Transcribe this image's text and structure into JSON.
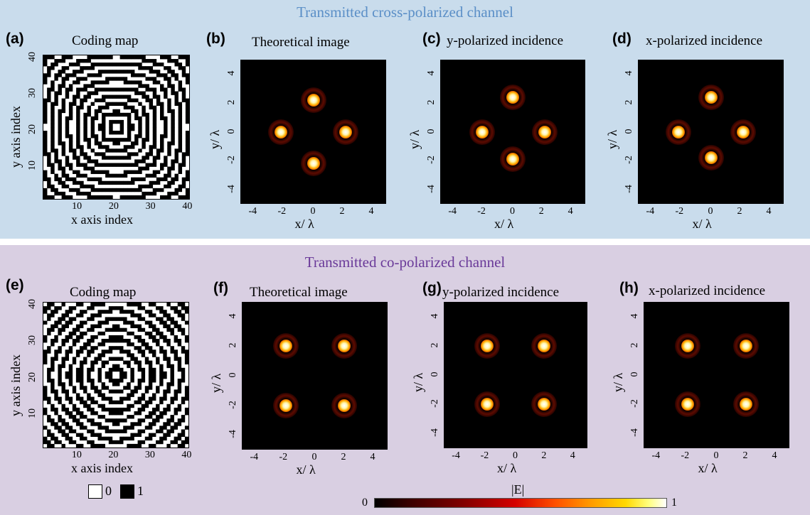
{
  "sections": {
    "top_title": "Transmitted cross-polarized channel",
    "bottom_title": "Transmitted co-polarized channel"
  },
  "panels": {
    "a": {
      "label": "(a)",
      "title": "Coding map",
      "xlabel": "x axis index",
      "ylabel": "y axis index",
      "xticks": [
        "10",
        "20",
        "30",
        "40"
      ],
      "yticks": [
        "10",
        "20",
        "30",
        "40"
      ]
    },
    "b": {
      "label": "(b)",
      "title": "Theoretical image",
      "xlabel": "x/ λ",
      "ylabel": "y/ λ",
      "xticks": [
        "-4",
        "-2",
        "0",
        "2",
        "4"
      ],
      "yticks": [
        "-4",
        "-2",
        "0",
        "2",
        "4"
      ]
    },
    "c": {
      "label": "(c)",
      "title": "y-polarized incidence",
      "xlabel": "x/ λ",
      "ylabel": "y/ λ",
      "xticks": [
        "-4",
        "-2",
        "0",
        "2",
        "4"
      ],
      "yticks": [
        "-4",
        "-2",
        "0",
        "2",
        "4"
      ]
    },
    "d": {
      "label": "(d)",
      "title": "x-polarized incidence",
      "xlabel": "x/ λ",
      "ylabel": "y/ λ",
      "xticks": [
        "-4",
        "-2",
        "0",
        "2",
        "4"
      ],
      "yticks": [
        "-4",
        "-2",
        "0",
        "2",
        "4"
      ]
    },
    "e": {
      "label": "(e)",
      "title": "Coding map",
      "xlabel": "x axis index",
      "ylabel": "y axis index",
      "xticks": [
        "10",
        "20",
        "30",
        "40"
      ],
      "yticks": [
        "10",
        "20",
        "30",
        "40"
      ]
    },
    "f": {
      "label": "(f)",
      "title": "Theoretical image",
      "xlabel": "x/ λ",
      "ylabel": "y/ λ",
      "xticks": [
        "-4",
        "-2",
        "0",
        "2",
        "4"
      ],
      "yticks": [
        "-4",
        "-2",
        "0",
        "2",
        "4"
      ]
    },
    "g": {
      "label": "(g)",
      "title": "y-polarized incidence",
      "xlabel": "x/ λ",
      "ylabel": "y/ λ",
      "xticks": [
        "-4",
        "-2",
        "0",
        "2",
        "4"
      ],
      "yticks": [
        "-4",
        "-2",
        "0",
        "2",
        "4"
      ]
    },
    "h": {
      "label": "(h)",
      "title": "x-polarized incidence",
      "xlabel": "x/ λ",
      "ylabel": "y/ λ",
      "xticks": [
        "-4",
        "-2",
        "0",
        "2",
        "4"
      ],
      "yticks": [
        "-4",
        "-2",
        "0",
        "2",
        "4"
      ]
    }
  },
  "legend": {
    "zero": "0",
    "one": "1"
  },
  "colorbar": {
    "label": "|E|",
    "min": "0",
    "max": "1"
  },
  "colors": {
    "background_top": "#c9dcec",
    "background_bottom": "#d9cfe2",
    "title_top": "#5b8fc7",
    "title_bottom": "#6a3a99"
  },
  "chart_data": [
    {
      "type": "heatmap",
      "panel": "b",
      "xlim": [
        -5,
        5
      ],
      "ylim": [
        -5,
        5
      ],
      "focal_spots": [
        {
          "x": 0,
          "y": 2.2
        },
        {
          "x": -2.2,
          "y": 0
        },
        {
          "x": 2.2,
          "y": 0
        },
        {
          "x": 0,
          "y": -2.2
        }
      ]
    },
    {
      "type": "heatmap",
      "panel": "c",
      "xlim": [
        -5,
        5
      ],
      "ylim": [
        -5,
        5
      ],
      "focal_spots": [
        {
          "x": 0,
          "y": 2.4
        },
        {
          "x": -2.1,
          "y": 0
        },
        {
          "x": 2.2,
          "y": 0
        },
        {
          "x": 0,
          "y": -1.9
        }
      ]
    },
    {
      "type": "heatmap",
      "panel": "d",
      "xlim": [
        -5,
        5
      ],
      "ylim": [
        -5,
        5
      ],
      "focal_spots": [
        {
          "x": 0,
          "y": 2.4
        },
        {
          "x": -2.2,
          "y": 0
        },
        {
          "x": 2.2,
          "y": 0
        },
        {
          "x": 0,
          "y": -1.8
        }
      ]
    },
    {
      "type": "heatmap",
      "panel": "f",
      "xlim": [
        -5,
        5
      ],
      "ylim": [
        -5,
        5
      ],
      "focal_spots": [
        {
          "x": -2,
          "y": 2
        },
        {
          "x": 2,
          "y": 2
        },
        {
          "x": -2,
          "y": -2
        },
        {
          "x": 2,
          "y": -2
        }
      ]
    },
    {
      "type": "heatmap",
      "panel": "g",
      "xlim": [
        -5,
        5
      ],
      "ylim": [
        -5,
        5
      ],
      "focal_spots": [
        {
          "x": -2,
          "y": 2
        },
        {
          "x": 2,
          "y": 2
        },
        {
          "x": -2,
          "y": -2
        },
        {
          "x": 2,
          "y": -2
        }
      ]
    },
    {
      "type": "heatmap",
      "panel": "h",
      "xlim": [
        -5,
        5
      ],
      "ylim": [
        -5,
        5
      ],
      "focal_spots": [
        {
          "x": -2,
          "y": 2
        },
        {
          "x": 2,
          "y": 2
        },
        {
          "x": -2,
          "y": -2
        },
        {
          "x": 2,
          "y": -2
        }
      ]
    }
  ]
}
